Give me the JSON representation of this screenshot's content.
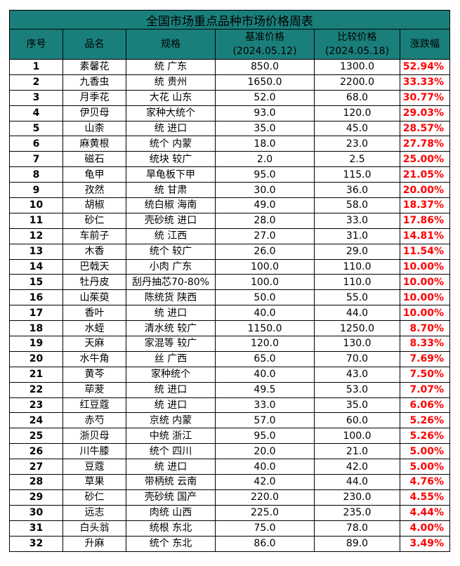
{
  "title": "全国市场重点品种市场价格周表",
  "headers": {
    "seq": "序号",
    "name": "品名",
    "spec": "规格",
    "base": "基准价格",
    "base_date": "(2024.05.12)",
    "comp": "比较价格",
    "comp_date": "(2024.05.18)",
    "change": "涨跌幅"
  },
  "rows": [
    {
      "seq": "1",
      "name": "素馨花",
      "spec": "统 广东",
      "base": "850.0",
      "comp": "1300.0",
      "change": "52.94%"
    },
    {
      "seq": "2",
      "name": "九香虫",
      "spec": "统 贵州",
      "base": "1650.0",
      "comp": "2200.0",
      "change": "33.33%"
    },
    {
      "seq": "3",
      "name": "月季花",
      "spec": "大花 山东",
      "base": "52.0",
      "comp": "68.0",
      "change": "30.77%"
    },
    {
      "seq": "4",
      "name": "伊贝母",
      "spec": "家种大统个",
      "base": "93.0",
      "comp": "120.0",
      "change": "29.03%"
    },
    {
      "seq": "5",
      "name": "山柰",
      "spec": "统 进口",
      "base": "35.0",
      "comp": "45.0",
      "change": "28.57%"
    },
    {
      "seq": "6",
      "name": "麻黄根",
      "spec": "统个 内蒙",
      "base": "18.0",
      "comp": "23.0",
      "change": "27.78%"
    },
    {
      "seq": "7",
      "name": "磁石",
      "spec": "统块 较广",
      "base": "2.0",
      "comp": "2.5",
      "change": "25.00%"
    },
    {
      "seq": "8",
      "name": "龟甲",
      "spec": "旱龟板下甲",
      "base": "95.0",
      "comp": "115.0",
      "change": "21.05%"
    },
    {
      "seq": "9",
      "name": "孜然",
      "spec": "统 甘肃",
      "base": "30.0",
      "comp": "36.0",
      "change": "20.00%"
    },
    {
      "seq": "10",
      "name": "胡椒",
      "spec": "统白椒 海南",
      "base": "49.0",
      "comp": "58.0",
      "change": "18.37%"
    },
    {
      "seq": "11",
      "name": "砂仁",
      "spec": "壳砂统 进口",
      "base": "28.0",
      "comp": "33.0",
      "change": "17.86%"
    },
    {
      "seq": "12",
      "name": "车前子",
      "spec": "统 江西",
      "base": "27.0",
      "comp": "31.0",
      "change": "14.81%"
    },
    {
      "seq": "13",
      "name": "木香",
      "spec": "统个 较广",
      "base": "26.0",
      "comp": "29.0",
      "change": "11.54%"
    },
    {
      "seq": "14",
      "name": "巴戟天",
      "spec": "小肉 广东",
      "base": "100.0",
      "comp": "110.0",
      "change": "10.00%"
    },
    {
      "seq": "15",
      "name": "牡丹皮",
      "spec": "刮丹抽芯70-80%",
      "base": "100.0",
      "comp": "110.0",
      "change": "10.00%"
    },
    {
      "seq": "16",
      "name": "山茱萸",
      "spec": "陈统货 陕西",
      "base": "50.0",
      "comp": "55.0",
      "change": "10.00%"
    },
    {
      "seq": "17",
      "name": "香叶",
      "spec": "统 进口",
      "base": "40.0",
      "comp": "44.0",
      "change": "10.00%"
    },
    {
      "seq": "18",
      "name": "水蛭",
      "spec": "清水统 较广",
      "base": "1150.0",
      "comp": "1250.0",
      "change": "8.70%"
    },
    {
      "seq": "19",
      "name": "天麻",
      "spec": "家混等 较广",
      "base": "120.0",
      "comp": "130.0",
      "change": "8.33%"
    },
    {
      "seq": "20",
      "name": "水牛角",
      "spec": "丝 广西",
      "base": "65.0",
      "comp": "70.0",
      "change": "7.69%"
    },
    {
      "seq": "21",
      "name": "黄芩",
      "spec": "家种统个",
      "base": "40.0",
      "comp": "43.0",
      "change": "7.50%"
    },
    {
      "seq": "22",
      "name": "荜茇",
      "spec": "统 进口",
      "base": "49.5",
      "comp": "53.0",
      "change": "7.07%"
    },
    {
      "seq": "23",
      "name": "红豆蔻",
      "spec": "统 进口",
      "base": "33.0",
      "comp": "35.0",
      "change": "6.06%"
    },
    {
      "seq": "24",
      "name": "赤芍",
      "spec": "京统 内蒙",
      "base": "57.0",
      "comp": "60.0",
      "change": "5.26%"
    },
    {
      "seq": "25",
      "name": "浙贝母",
      "spec": "中统 浙江",
      "base": "95.0",
      "comp": "100.0",
      "change": "5.26%"
    },
    {
      "seq": "26",
      "name": "川牛膝",
      "spec": "统个 四川",
      "base": "20.0",
      "comp": "21.0",
      "change": "5.00%"
    },
    {
      "seq": "27",
      "name": "豆蔻",
      "spec": "统 进口",
      "base": "40.0",
      "comp": "42.0",
      "change": "5.00%"
    },
    {
      "seq": "28",
      "name": "草果",
      "spec": "带柄统 云南",
      "base": "42.0",
      "comp": "44.0",
      "change": "4.76%"
    },
    {
      "seq": "29",
      "name": "砂仁",
      "spec": "壳砂统 国产",
      "base": "220.0",
      "comp": "230.0",
      "change": "4.55%"
    },
    {
      "seq": "30",
      "name": "远志",
      "spec": "肉统 山西",
      "base": "225.0",
      "comp": "235.0",
      "change": "4.44%"
    },
    {
      "seq": "31",
      "name": "白头翁",
      "spec": "统根 东北",
      "base": "75.0",
      "comp": "78.0",
      "change": "4.00%"
    },
    {
      "seq": "32",
      "name": "升麻",
      "spec": "统个 东北",
      "base": "86.0",
      "comp": "89.0",
      "change": "3.49%"
    }
  ],
  "colors": {
    "header_bg": "#1a7f7a",
    "change_text": "#ff0000"
  }
}
